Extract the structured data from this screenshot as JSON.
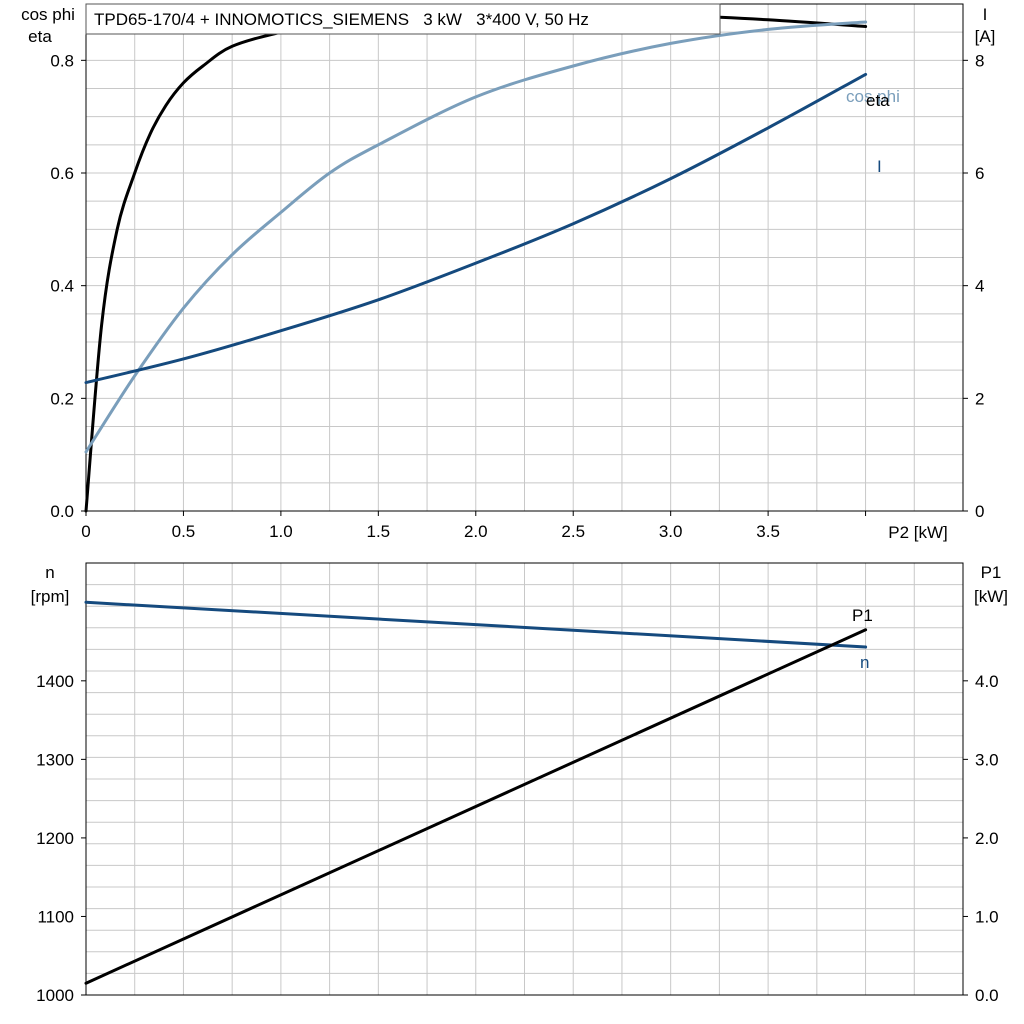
{
  "title": "TPD65-170/4 + INNOMOTICS_SIEMENS   3 kW   3*400 V, 50 Hz",
  "colors": {
    "eta": "#000000",
    "cosphi": "#7a9ebb",
    "current": "#154a7e",
    "n": "#154a7e",
    "p1": "#000000",
    "grid": "#c8c8c8",
    "axis": "#000000"
  },
  "chart_data": [
    {
      "type": "line",
      "xlabel": "P2 [kW]",
      "ylabel_left": [
        "cos phi",
        "eta"
      ],
      "ylabel_right": [
        "I",
        "[A]"
      ],
      "xlim": [
        0,
        4.5
      ],
      "ylim_left": [
        0,
        0.9
      ],
      "ylim_right": [
        0,
        9
      ],
      "x_ticks": [
        0,
        0.5,
        1.0,
        1.5,
        2.0,
        2.5,
        3.0,
        3.5
      ],
      "x_tick_labels": [
        "0",
        "0.5",
        "1.0",
        "1.5",
        "2.0",
        "2.5",
        "3.0",
        "3.5"
      ],
      "y_left_ticks": [
        0,
        0.2,
        0.4,
        0.6,
        0.8
      ],
      "y_left_tick_labels": [
        "0.0",
        "0.2",
        "0.4",
        "0.6",
        "0.8"
      ],
      "y_right_ticks": [
        0,
        2,
        4,
        6,
        8
      ],
      "y_right_tick_labels": [
        "0",
        "2",
        "4",
        "6",
        "8"
      ],
      "grid": true,
      "series": [
        {
          "name": "eta",
          "axis": "left",
          "color": "#000000",
          "x": [
            0,
            0.08,
            0.16,
            0.25,
            0.33,
            0.41,
            0.5,
            0.6,
            0.75,
            1.0,
            1.25,
            1.5,
            2.0,
            2.5,
            3.0,
            3.5,
            4.0
          ],
          "y": [
            0,
            0.33,
            0.5,
            0.6,
            0.67,
            0.72,
            0.76,
            0.79,
            0.825,
            0.85,
            0.867,
            0.877,
            0.886,
            0.885,
            0.88,
            0.872,
            0.86
          ]
        },
        {
          "name": "cos phi",
          "axis": "left",
          "color": "#7a9ebb",
          "x": [
            0,
            0.25,
            0.5,
            0.75,
            1.0,
            1.25,
            1.5,
            2.0,
            2.5,
            3.0,
            3.5,
            4.0
          ],
          "y": [
            0.105,
            0.24,
            0.36,
            0.455,
            0.53,
            0.6,
            0.65,
            0.735,
            0.79,
            0.83,
            0.855,
            0.868
          ]
        },
        {
          "name": "I",
          "axis": "right",
          "color": "#154a7e",
          "x": [
            0,
            0.5,
            1.0,
            1.5,
            2.0,
            2.5,
            3.0,
            3.5,
            4.0
          ],
          "y": [
            2.28,
            2.7,
            3.2,
            3.75,
            4.4,
            5.1,
            5.9,
            6.8,
            7.75
          ]
        }
      ]
    },
    {
      "type": "line",
      "ylabel_left": [
        "n",
        "[rpm]"
      ],
      "ylabel_right": [
        "P1",
        "[kW]"
      ],
      "xlim": [
        0,
        4.5
      ],
      "ylim_left": [
        1000,
        1550
      ],
      "ylim_right": [
        0,
        5.5
      ],
      "y_left_ticks": [
        1000,
        1100,
        1200,
        1300,
        1400
      ],
      "y_left_tick_labels": [
        "1000",
        "1100",
        "1200",
        "1300",
        "1400"
      ],
      "y_right_ticks": [
        0,
        1,
        2,
        3,
        4
      ],
      "y_right_tick_labels": [
        "0.0",
        "1.0",
        "2.0",
        "3.0",
        "4.0"
      ],
      "grid": true,
      "series": [
        {
          "name": "n",
          "axis": "left",
          "color": "#154a7e",
          "x": [
            0,
            4.0
          ],
          "y": [
            1500,
            1443
          ]
        },
        {
          "name": "P1",
          "axis": "right",
          "color": "#000000",
          "x": [
            0,
            4.0
          ],
          "y": [
            0.15,
            4.65
          ]
        }
      ]
    }
  ]
}
